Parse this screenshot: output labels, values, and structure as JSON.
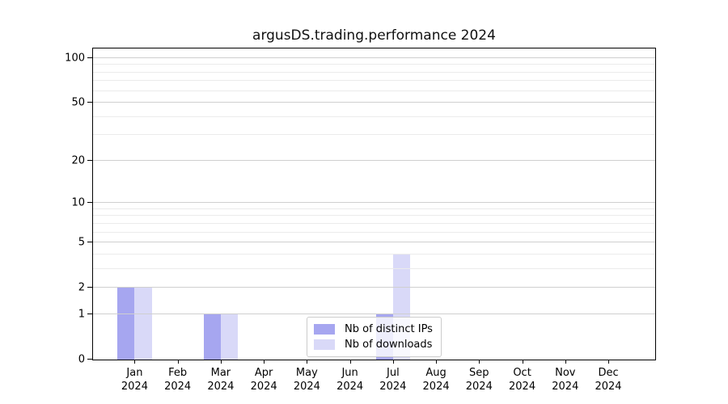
{
  "title": "argusDS.trading.performance 2024",
  "chart_data": {
    "type": "bar",
    "title": "argusDS.trading.performance 2024",
    "categories": [
      "Jan",
      "Feb",
      "Mar",
      "Apr",
      "May",
      "Jun",
      "Jul",
      "Aug",
      "Sep",
      "Oct",
      "Nov",
      "Dec"
    ],
    "x_year": "2024",
    "series": [
      {
        "name": "Nb of distinct IPs",
        "color": "#a6a6f0",
        "values": [
          2,
          0,
          1,
          0,
          0,
          0,
          1,
          0,
          0,
          0,
          0,
          0
        ]
      },
      {
        "name": "Nb of downloads",
        "color": "#d9d9f8",
        "values": [
          2,
          0,
          1,
          0,
          0,
          0,
          4,
          0,
          0,
          0,
          0,
          0
        ]
      }
    ],
    "xlabel": "",
    "ylabel": "",
    "y_scale": "log1p",
    "y_ticks": [
      0,
      1,
      2,
      5,
      10,
      20,
      50,
      100
    ],
    "y_minor_gridlines": [
      3,
      4,
      6,
      7,
      8,
      9,
      30,
      40,
      60,
      70,
      80,
      90
    ],
    "ylim": [
      0,
      116
    ],
    "grid": true,
    "legend_position": "inside lower-center",
    "axis_color": "#000000",
    "major_grid_color": "#cfcfcf",
    "minor_grid_color": "#ebebeb"
  }
}
